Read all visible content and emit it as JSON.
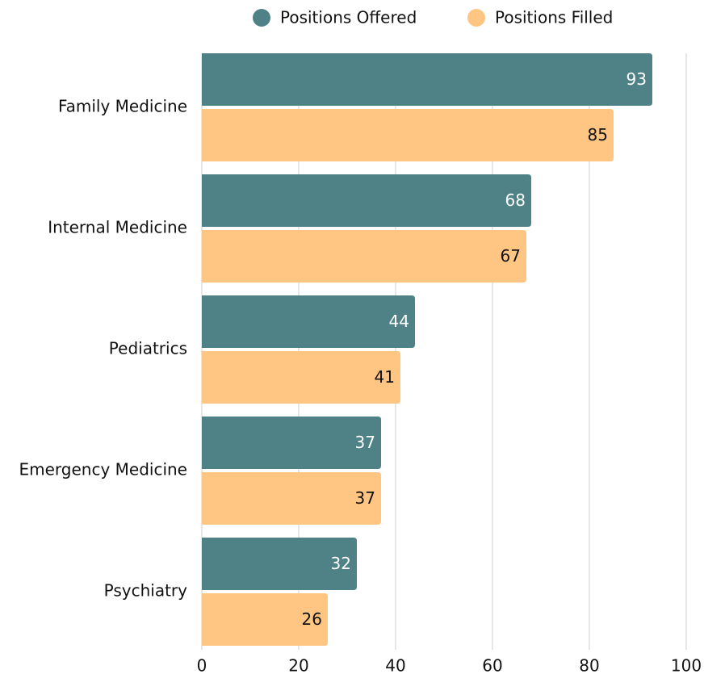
{
  "chart_data": {
    "type": "hbar",
    "categories": [
      "Family Medicine",
      "Internal Medicine",
      "Pediatrics",
      "Emergency Medicine",
      "Psychiatry"
    ],
    "series": [
      {
        "name": "Positions Offered",
        "color": "#4f8286",
        "values": [
          93,
          68,
          44,
          37,
          32
        ]
      },
      {
        "name": "Positions Filled",
        "color": "#fec583",
        "values": [
          85,
          67,
          41,
          37,
          26
        ]
      }
    ],
    "xlim": [
      0,
      100
    ],
    "xticks": [
      0,
      20,
      40,
      60,
      80,
      100
    ],
    "grid": true,
    "legend": "top"
  }
}
